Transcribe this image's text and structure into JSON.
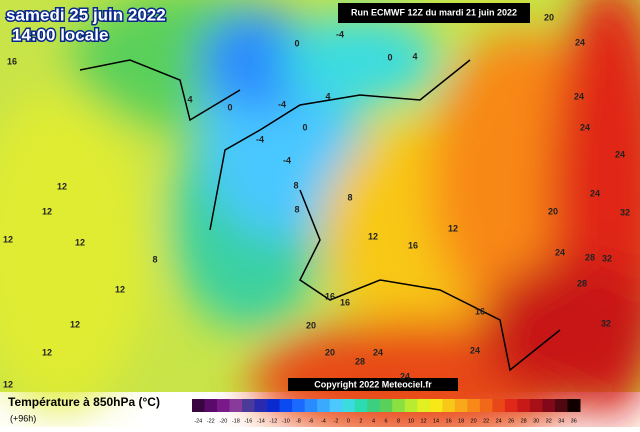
{
  "header": {
    "date": "samedi 25 juin 2022",
    "time": "14:00 locale",
    "run": "Run ECMWF 12Z du mardi 21 juin 2022",
    "copyright": "Copyright 2022 Meteociel.fr"
  },
  "legend": {
    "title": "Température à 850hPa (°C)",
    "subtitle": "(+96h)",
    "ticks": [
      -24,
      -22,
      -20,
      -18,
      -16,
      -14,
      -12,
      -10,
      -8,
      -6,
      -4,
      -2,
      0,
      2,
      4,
      6,
      8,
      10,
      12,
      14,
      16,
      18,
      20,
      22,
      24,
      26,
      28,
      30,
      32,
      34,
      36
    ],
    "colors": [
      "#3a0640",
      "#5a0a6a",
      "#7a1a8a",
      "#8a3a9a",
      "#4a3a9a",
      "#2a2ab0",
      "#0a2ad0",
      "#0a4af0",
      "#1a6aff",
      "#2a8aff",
      "#3aaaff",
      "#4ac8ff",
      "#3adce0",
      "#2adcb0",
      "#3ad080",
      "#5ad05a",
      "#8ae040",
      "#b8ec30",
      "#e0f020",
      "#f8e818",
      "#f8c818",
      "#f8a818",
      "#f88818",
      "#f06818",
      "#e84818",
      "#e02818",
      "#c81818",
      "#a81018",
      "#800818",
      "#500810",
      "#100000"
    ]
  },
  "map": {
    "labels": [
      "16",
      "12",
      "12",
      "12",
      "12",
      "8",
      "12",
      "12",
      "12",
      "12",
      "4",
      "0",
      "-4",
      "4",
      "0",
      "0",
      "-4",
      "0",
      "4",
      "-4",
      "-4",
      "8",
      "8",
      "8",
      "12",
      "12",
      "16",
      "16",
      "16",
      "16",
      "20",
      "20",
      "28",
      "24",
      "24",
      "24",
      "20",
      "24",
      "28",
      "28",
      "24",
      "32",
      "32",
      "32",
      "24",
      "24",
      "24",
      "24",
      "20"
    ]
  }
}
